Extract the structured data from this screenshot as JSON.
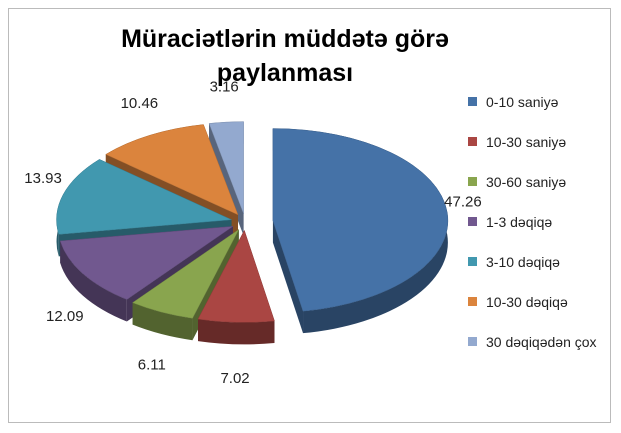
{
  "chart_data": {
    "type": "pie",
    "title": "Müraciətlərin müddətə görə paylanması",
    "categories": [
      "0-10 saniyə",
      "10-30 saniyə",
      "30-60 saniyə",
      "1-3 dəqiqə",
      "3-10 dəqiqə",
      "10-30 dəqiqə",
      "30 dəqiqədən çox"
    ],
    "values": [
      47.26,
      7.02,
      6.11,
      12.09,
      13.93,
      10.46,
      3.16
    ],
    "colors": [
      "#4572a7",
      "#aa4643",
      "#89a54e",
      "#71588f",
      "#4198af",
      "#db843d",
      "#93a9cf"
    ],
    "legend": "right"
  }
}
